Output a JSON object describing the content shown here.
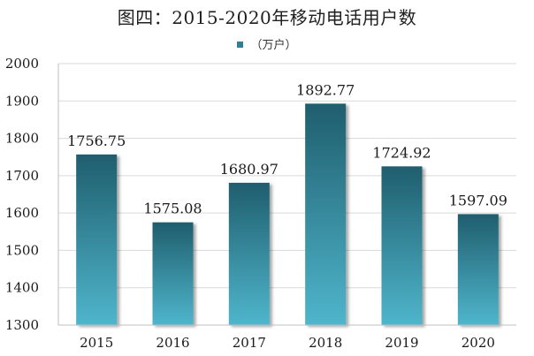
{
  "chart_data": {
    "type": "bar",
    "title": "图四：2015-2020年移动电话用户数",
    "legend": [
      "（万户）"
    ],
    "legend_position": "top",
    "categories": [
      "2015",
      "2016",
      "2017",
      "2018",
      "2019",
      "2020"
    ],
    "series": [
      {
        "name": "（万户）",
        "values": [
          1756.75,
          1575.08,
          1680.97,
          1892.77,
          1724.92,
          1597.09
        ]
      }
    ],
    "data_labels": [
      "1756.75",
      "1575.08",
      "1680.97",
      "1892.77",
      "1724.92",
      "1597.09"
    ],
    "y_ticks": [
      "1300",
      "1400",
      "1500",
      "1600",
      "1700",
      "1800",
      "1900",
      "2000"
    ],
    "ylim": [
      1300,
      2000
    ],
    "grid": true,
    "bar_gradient": {
      "top": "#1f5e6e",
      "bottom": "#4fb6cc"
    },
    "grid_color": "#d9d9d9"
  }
}
